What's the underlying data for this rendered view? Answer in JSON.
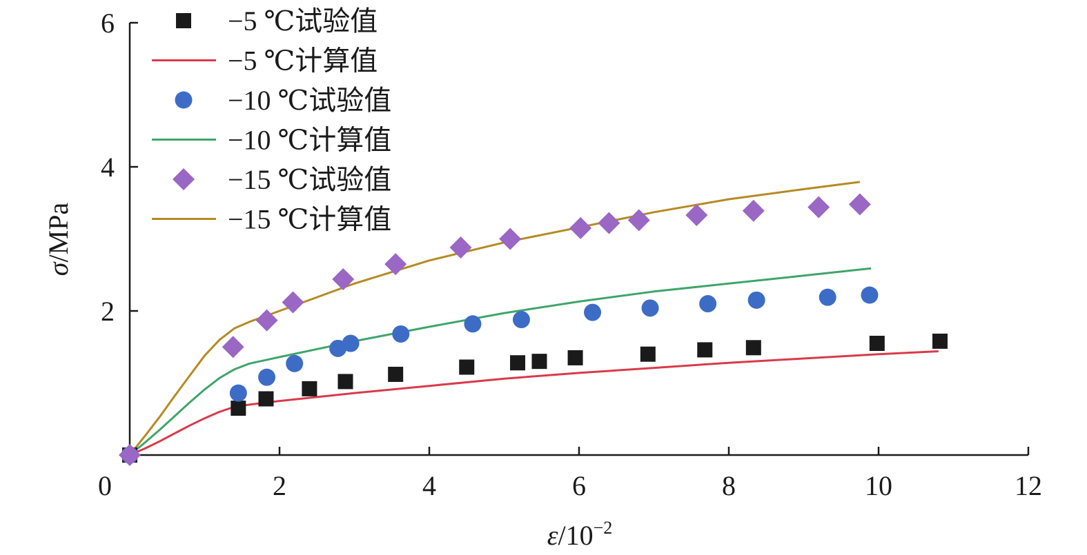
{
  "chart_data": {
    "type": "scatter",
    "xlabel_sym": "ε",
    "xlabel_unit": "/10",
    "xlabel_exp": "−2",
    "ylabel_sym": "σ",
    "ylabel_unit": "/MPa",
    "xlim": [
      0,
      12
    ],
    "ylim": [
      0,
      6
    ],
    "xticks": [
      {
        "v": 0,
        "label": "0"
      },
      {
        "v": 2,
        "label": "2"
      },
      {
        "v": 4,
        "label": "4"
      },
      {
        "v": 6,
        "label": "6"
      },
      {
        "v": 8,
        "label": "8"
      },
      {
        "v": 10,
        "label": "10"
      },
      {
        "v": 12,
        "label": "12"
      }
    ],
    "yticks": [
      {
        "v": 2,
        "label": "2"
      },
      {
        "v": 4,
        "label": "4"
      },
      {
        "v": 6,
        "label": "6"
      }
    ],
    "grid": false,
    "legend_position": "top-left",
    "series": [
      {
        "name": "−5 ℃试验值",
        "kind": "points",
        "marker": "square",
        "color": "#1a1a1a",
        "x": [
          0.0,
          1.45,
          1.82,
          2.4,
          2.88,
          3.55,
          4.5,
          5.18,
          5.47,
          5.95,
          6.92,
          7.68,
          8.33,
          9.98,
          10.82
        ],
        "y": [
          0.0,
          0.65,
          0.78,
          0.92,
          1.02,
          1.12,
          1.22,
          1.28,
          1.3,
          1.35,
          1.4,
          1.46,
          1.49,
          1.55,
          1.58
        ]
      },
      {
        "name": "−5 ℃计算值",
        "kind": "line",
        "color": "#d93a4a",
        "x": [
          0.0,
          0.2,
          0.4,
          0.6,
          0.8,
          1.0,
          1.2,
          1.4,
          1.6,
          2.0,
          3.0,
          4.0,
          5.0,
          6.0,
          7.0,
          8.0,
          9.0,
          10.0,
          10.8
        ],
        "y": [
          0.0,
          0.09,
          0.19,
          0.3,
          0.41,
          0.51,
          0.6,
          0.67,
          0.7,
          0.75,
          0.86,
          0.96,
          1.06,
          1.14,
          1.21,
          1.28,
          1.34,
          1.4,
          1.44
        ]
      },
      {
        "name": "−10 ℃试验值",
        "kind": "points",
        "marker": "circle",
        "color": "#3d6cc6",
        "x": [
          0.0,
          1.45,
          1.83,
          2.2,
          2.78,
          2.95,
          3.62,
          4.58,
          5.23,
          6.18,
          6.95,
          7.72,
          8.37,
          9.32,
          9.88
        ],
        "y": [
          0.0,
          0.86,
          1.08,
          1.27,
          1.48,
          1.55,
          1.68,
          1.82,
          1.88,
          1.98,
          2.04,
          2.1,
          2.15,
          2.19,
          2.22
        ]
      },
      {
        "name": "−10 ℃计算值",
        "kind": "line",
        "color": "#3fa56a",
        "x": [
          0.0,
          0.2,
          0.4,
          0.6,
          0.8,
          1.0,
          1.2,
          1.4,
          1.6,
          2.0,
          3.0,
          4.0,
          5.0,
          6.0,
          7.0,
          8.0,
          9.0,
          9.9
        ],
        "y": [
          0.0,
          0.17,
          0.35,
          0.54,
          0.73,
          0.91,
          1.07,
          1.19,
          1.27,
          1.36,
          1.58,
          1.78,
          1.97,
          2.13,
          2.27,
          2.38,
          2.49,
          2.59
        ]
      },
      {
        "name": "−15 ℃试验值",
        "kind": "points",
        "marker": "diamond",
        "color": "#9a67c4",
        "x": [
          0.0,
          1.38,
          1.83,
          2.18,
          2.85,
          3.55,
          4.42,
          5.08,
          6.02,
          6.4,
          6.8,
          7.57,
          8.33,
          9.2,
          9.75
        ],
        "y": [
          0.0,
          1.5,
          1.87,
          2.12,
          2.44,
          2.65,
          2.88,
          3.0,
          3.15,
          3.22,
          3.26,
          3.33,
          3.39,
          3.44,
          3.48
        ]
      },
      {
        "name": "−15 ℃计算值",
        "kind": "line",
        "color": "#b58a22",
        "x": [
          0.0,
          0.2,
          0.4,
          0.6,
          0.8,
          1.0,
          1.2,
          1.4,
          1.6,
          2.0,
          3.0,
          4.0,
          5.0,
          6.0,
          7.0,
          8.0,
          9.0,
          9.75
        ],
        "y": [
          0.0,
          0.26,
          0.53,
          0.82,
          1.1,
          1.38,
          1.6,
          1.76,
          1.85,
          2.0,
          2.38,
          2.7,
          2.95,
          3.16,
          3.37,
          3.55,
          3.69,
          3.79
        ]
      }
    ]
  }
}
